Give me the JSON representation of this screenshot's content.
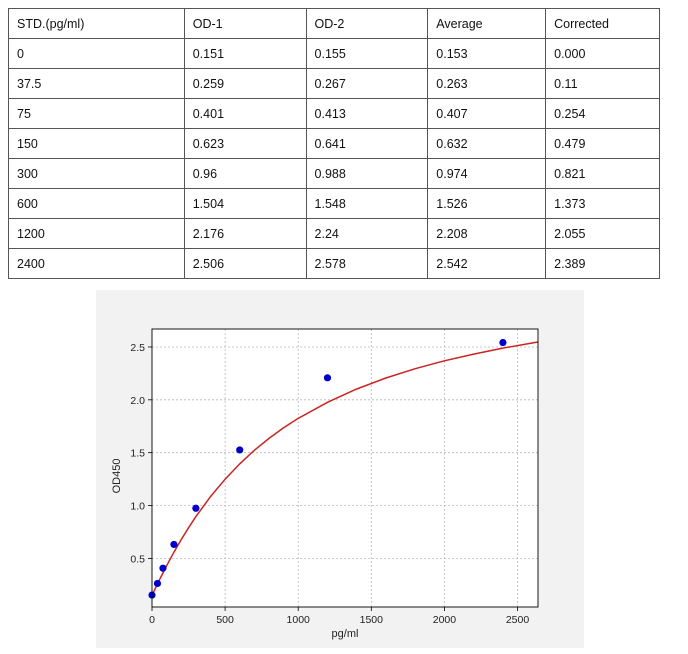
{
  "table": {
    "headers": [
      "STD.(pg/ml)",
      "OD-1",
      "OD-2",
      "Average",
      "Corrected"
    ],
    "rows": [
      [
        "0",
        "0.151",
        "0.155",
        "0.153",
        "0.000"
      ],
      [
        "37.5",
        "0.259",
        "0.267",
        "0.263",
        "0.11"
      ],
      [
        "75",
        "0.401",
        "0.413",
        "0.407",
        "0.254"
      ],
      [
        "150",
        "0.623",
        "0.641",
        "0.632",
        "0.479"
      ],
      [
        "300",
        "0.96",
        "0.988",
        "0.974",
        "0.821"
      ],
      [
        "600",
        "1.504",
        "1.548",
        "1.526",
        "1.373"
      ],
      [
        "1200",
        "2.176",
        "2.24",
        "2.208",
        "2.055"
      ],
      [
        "2400",
        "2.506",
        "2.578",
        "2.542",
        "2.389"
      ]
    ]
  },
  "chart_data": {
    "type": "scatter",
    "title": "",
    "xlabel": "pg/ml",
    "ylabel": "OD450",
    "xlim": [
      0,
      2640
    ],
    "ylim": [
      0.04,
      2.67
    ],
    "xticks": [
      0,
      500,
      1000,
      1500,
      2000,
      2500
    ],
    "yticks": [
      0.5,
      1.0,
      1.5,
      2.0,
      2.5
    ],
    "xtick_labels": [
      "0",
      "500",
      "1000",
      "1500",
      "2000",
      "2500"
    ],
    "ytick_labels": [
      "0.5",
      "1.0",
      "1.5",
      "2.0",
      "2.5"
    ],
    "grid": true,
    "points": {
      "x": [
        0,
        37.5,
        75,
        150,
        300,
        600,
        1200,
        2400
      ],
      "y": [
        0.153,
        0.263,
        0.407,
        0.632,
        0.974,
        1.526,
        2.208,
        2.542
      ],
      "color": "#0000cc"
    },
    "fit_curve": {
      "color": "#cc2222",
      "x": [
        0,
        25,
        50,
        75,
        100,
        150,
        200,
        250,
        300,
        400,
        500,
        600,
        700,
        800,
        900,
        1000,
        1200,
        1400,
        1600,
        1800,
        2000,
        2200,
        2400,
        2640
      ],
      "y": [
        0.152,
        0.223,
        0.294,
        0.363,
        0.43,
        0.558,
        0.678,
        0.79,
        0.895,
        1.084,
        1.249,
        1.394,
        1.522,
        1.635,
        1.735,
        1.824,
        1.977,
        2.102,
        2.206,
        2.294,
        2.369,
        2.433,
        2.489,
        2.547
      ]
    }
  }
}
